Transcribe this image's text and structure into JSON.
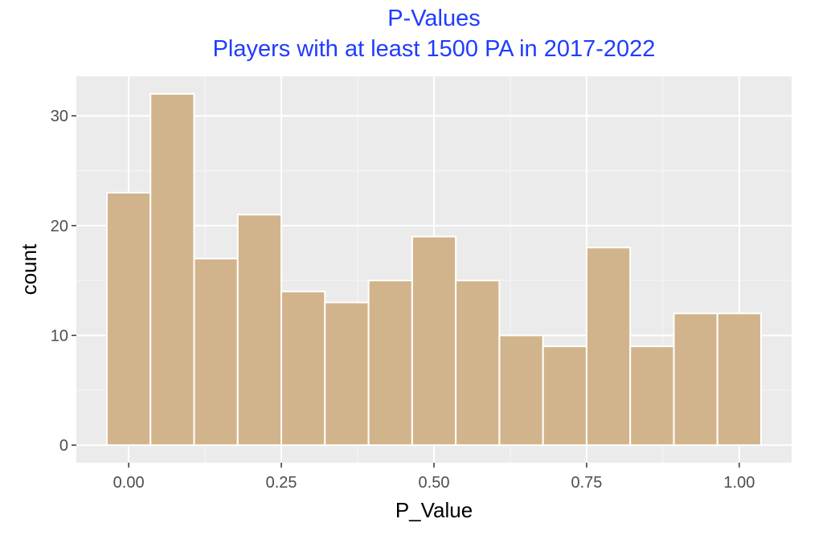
{
  "chart_data": {
    "type": "bar",
    "title": "P-Values",
    "subtitle": "Players with at least 1500 PA in 2017-2022",
    "xlabel": "P_Value",
    "ylabel": "count",
    "bin_width": 0.0714,
    "bins": [
      {
        "center": 0.0,
        "count": 23
      },
      {
        "center": 0.0714,
        "count": 32
      },
      {
        "center": 0.1429,
        "count": 17
      },
      {
        "center": 0.2143,
        "count": 21
      },
      {
        "center": 0.2857,
        "count": 14
      },
      {
        "center": 0.3571,
        "count": 13
      },
      {
        "center": 0.4286,
        "count": 15
      },
      {
        "center": 0.5,
        "count": 19
      },
      {
        "center": 0.5714,
        "count": 15
      },
      {
        "center": 0.6429,
        "count": 10
      },
      {
        "center": 0.7143,
        "count": 9
      },
      {
        "center": 0.7857,
        "count": 18
      },
      {
        "center": 0.8571,
        "count": 9
      },
      {
        "center": 0.9286,
        "count": 12
      },
      {
        "center": 1.0,
        "count": 12
      }
    ],
    "x_ticks": [
      {
        "value": 0.0,
        "label": "0.00"
      },
      {
        "value": 0.25,
        "label": "0.25"
      },
      {
        "value": 0.5,
        "label": "0.50"
      },
      {
        "value": 0.75,
        "label": "0.75"
      },
      {
        "value": 1.0,
        "label": "1.00"
      }
    ],
    "y_ticks": [
      {
        "value": 0,
        "label": "0"
      },
      {
        "value": 10,
        "label": "10"
      },
      {
        "value": 20,
        "label": "20"
      },
      {
        "value": 30,
        "label": "30"
      }
    ],
    "xlim": [
      -0.0857,
      1.0857
    ],
    "ylim": [
      -1.6,
      33.6
    ],
    "grid": true,
    "colors": {
      "bar_fill": "#d2b48c",
      "bar_edge": "#ffffff",
      "panel_bg": "#ebebeb",
      "grid_major": "#ffffff",
      "title": "#1f3cff"
    }
  }
}
